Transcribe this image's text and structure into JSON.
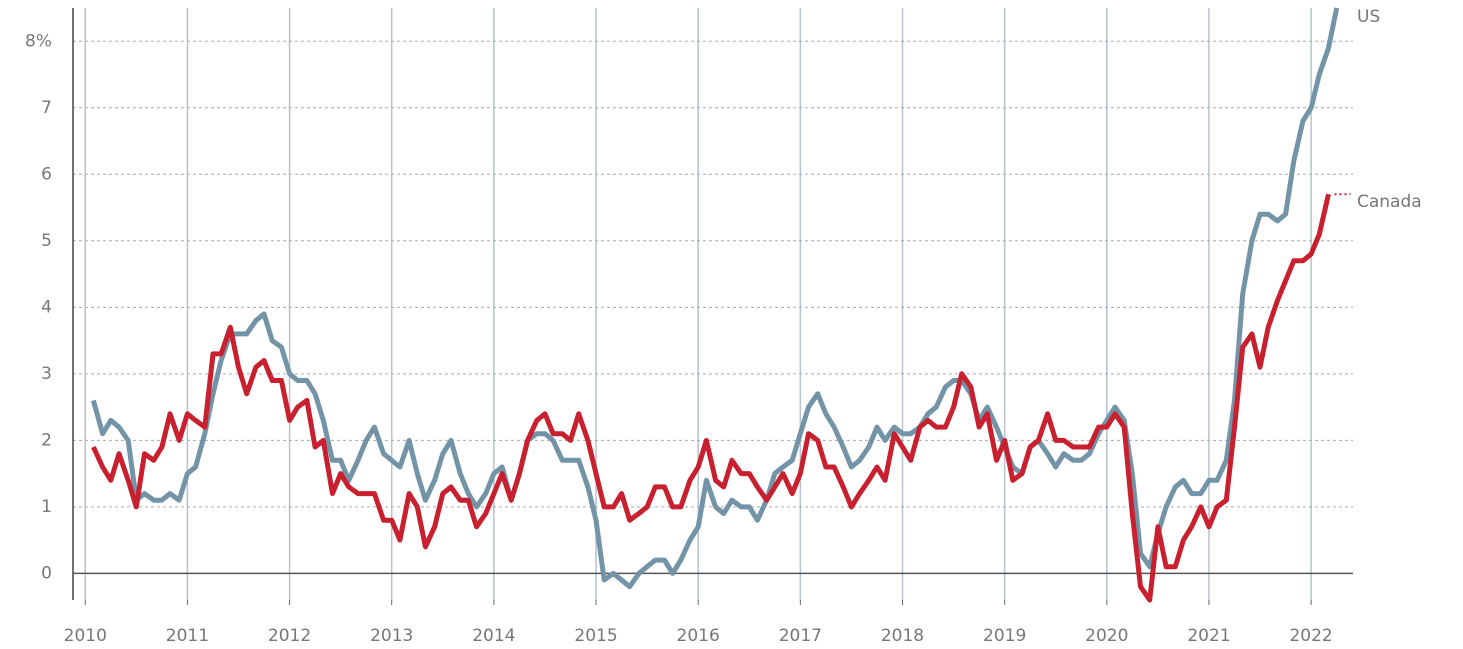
{
  "chart_data": {
    "type": "line",
    "x": [
      2010.08,
      2010.17,
      2010.25,
      2010.33,
      2010.42,
      2010.5,
      2010.58,
      2010.67,
      2010.75,
      2010.83,
      2010.92,
      2011,
      2011.08,
      2011.17,
      2011.25,
      2011.33,
      2011.42,
      2011.5,
      2011.58,
      2011.67,
      2011.75,
      2011.83,
      2011.92,
      2012,
      2012.08,
      2012.17,
      2012.25,
      2012.33,
      2012.42,
      2012.5,
      2012.58,
      2012.67,
      2012.75,
      2012.83,
      2012.92,
      2013,
      2013.08,
      2013.17,
      2013.25,
      2013.33,
      2013.42,
      2013.5,
      2013.58,
      2013.67,
      2013.75,
      2013.83,
      2013.92,
      2014,
      2014.08,
      2014.17,
      2014.25,
      2014.33,
      2014.42,
      2014.5,
      2014.58,
      2014.67,
      2014.75,
      2014.83,
      2014.92,
      2015,
      2015.08,
      2015.17,
      2015.25,
      2015.33,
      2015.42,
      2015.5,
      2015.58,
      2015.67,
      2015.75,
      2015.83,
      2015.92,
      2016,
      2016.08,
      2016.17,
      2016.25,
      2016.33,
      2016.42,
      2016.5,
      2016.58,
      2016.67,
      2016.75,
      2016.83,
      2016.92,
      2017,
      2017.08,
      2017.17,
      2017.25,
      2017.33,
      2017.42,
      2017.5,
      2017.58,
      2017.67,
      2017.75,
      2017.83,
      2017.92,
      2018,
      2018.08,
      2018.17,
      2018.25,
      2018.33,
      2018.42,
      2018.5,
      2018.58,
      2018.67,
      2018.75,
      2018.83,
      2018.92,
      2019,
      2019.08,
      2019.17,
      2019.25,
      2019.33,
      2019.42,
      2019.5,
      2019.58,
      2019.67,
      2019.75,
      2019.83,
      2019.92,
      2020,
      2020.08,
      2020.17,
      2020.25,
      2020.33,
      2020.42,
      2020.5,
      2020.58,
      2020.67,
      2020.75,
      2020.83,
      2020.92,
      2021,
      2021.08,
      2021.17,
      2021.25,
      2021.33,
      2021.42,
      2021.5,
      2021.58,
      2021.67,
      2021.75,
      2021.83,
      2021.92,
      2022,
      2022.08,
      2022.17,
      2022.25
    ],
    "series": [
      {
        "name": "US",
        "color": "#7393a7",
        "values": [
          2.6,
          2.1,
          2.3,
          2.2,
          2.0,
          1.1,
          1.2,
          1.1,
          1.1,
          1.2,
          1.1,
          1.5,
          1.6,
          2.1,
          2.7,
          3.2,
          3.6,
          3.6,
          3.6,
          3.8,
          3.9,
          3.5,
          3.4,
          3.0,
          2.9,
          2.9,
          2.7,
          2.3,
          1.7,
          1.7,
          1.4,
          1.7,
          2.0,
          2.2,
          1.8,
          1.7,
          1.6,
          2.0,
          1.5,
          1.1,
          1.4,
          1.8,
          2.0,
          1.5,
          1.2,
          1.0,
          1.2,
          1.5,
          1.6,
          1.1,
          1.5,
          2.0,
          2.1,
          2.1,
          2.0,
          1.7,
          1.7,
          1.7,
          1.3,
          0.8,
          -0.1,
          0.0,
          -0.1,
          -0.2,
          0.0,
          0.1,
          0.2,
          0.2,
          0.0,
          0.2,
          0.5,
          0.7,
          1.4,
          1.0,
          0.9,
          1.1,
          1.0,
          1.0,
          0.8,
          1.1,
          1.5,
          1.6,
          1.7,
          2.1,
          2.5,
          2.7,
          2.4,
          2.2,
          1.9,
          1.6,
          1.7,
          1.9,
          2.2,
          2.0,
          2.2,
          2.1,
          2.1,
          2.2,
          2.4,
          2.5,
          2.8,
          2.9,
          2.9,
          2.7,
          2.3,
          2.5,
          2.2,
          1.9,
          1.6,
          1.5,
          1.9,
          2.0,
          1.8,
          1.6,
          1.8,
          1.7,
          1.7,
          1.8,
          2.1,
          2.3,
          2.5,
          2.3,
          1.5,
          0.3,
          0.1,
          0.6,
          1.0,
          1.3,
          1.4,
          1.2,
          1.2,
          1.4,
          1.4,
          1.7,
          2.6,
          4.2,
          5.0,
          5.4,
          5.4,
          5.3,
          5.4,
          6.2,
          6.8,
          7.0,
          7.5,
          7.9,
          8.5
        ]
      },
      {
        "name": "Canada",
        "color": "#c8202f",
        "values": [
          1.9,
          1.6,
          1.4,
          1.8,
          1.4,
          1.0,
          1.8,
          1.7,
          1.9,
          2.4,
          2.0,
          2.4,
          2.3,
          2.2,
          3.3,
          3.3,
          3.7,
          3.1,
          2.7,
          3.1,
          3.2,
          2.9,
          2.9,
          2.3,
          2.5,
          2.6,
          1.9,
          2.0,
          1.2,
          1.5,
          1.3,
          1.2,
          1.2,
          1.2,
          0.8,
          0.8,
          0.5,
          1.2,
          1.0,
          0.4,
          0.7,
          1.2,
          1.3,
          1.1,
          1.1,
          0.7,
          0.9,
          1.2,
          1.5,
          1.1,
          1.5,
          2.0,
          2.3,
          2.4,
          2.1,
          2.1,
          2.0,
          2.4,
          2.0,
          1.5,
          1.0,
          1.0,
          1.2,
          0.8,
          0.9,
          1.0,
          1.3,
          1.3,
          1.0,
          1.0,
          1.4,
          1.6,
          2.0,
          1.4,
          1.3,
          1.7,
          1.5,
          1.5,
          1.3,
          1.1,
          1.3,
          1.5,
          1.2,
          1.5,
          2.1,
          2.0,
          1.6,
          1.6,
          1.3,
          1.0,
          1.2,
          1.4,
          1.6,
          1.4,
          2.1,
          1.9,
          1.7,
          2.2,
          2.3,
          2.2,
          2.2,
          2.5,
          3.0,
          2.8,
          2.2,
          2.4,
          1.7,
          2.0,
          1.4,
          1.5,
          1.9,
          2.0,
          2.4,
          2.0,
          2.0,
          1.9,
          1.9,
          1.9,
          2.2,
          2.2,
          2.4,
          2.2,
          0.9,
          -0.2,
          -0.4,
          0.7,
          0.1,
          0.1,
          0.5,
          0.7,
          1.0,
          0.7,
          1.0,
          1.1,
          2.2,
          3.4,
          3.6,
          3.1,
          3.7,
          4.1,
          4.4,
          4.7,
          4.7,
          4.8,
          5.1,
          5.7,
          null
        ]
      }
    ],
    "xlim": [
      2009.88,
      2022.41
    ],
    "xticks": [
      2010,
      2011,
      2012,
      2013,
      2014,
      2015,
      2016,
      2017,
      2018,
      2019,
      2020,
      2021,
      2022
    ],
    "ylim": [
      -0.4,
      8.5
    ],
    "yticks": [
      0,
      1,
      2,
      3,
      4,
      5,
      6,
      7,
      {
        "value": 8,
        "label": "8%"
      }
    ],
    "grid": true
  }
}
